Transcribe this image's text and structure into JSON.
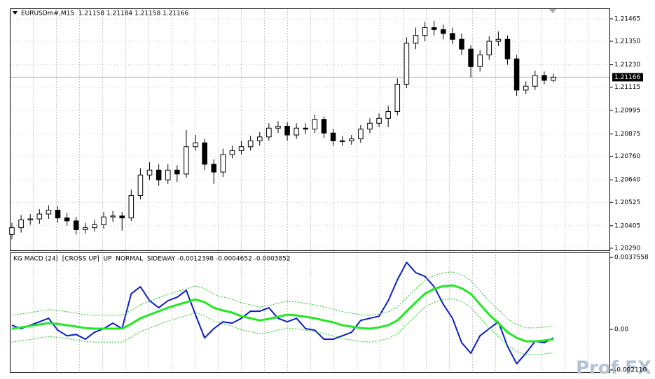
{
  "chart_data": [
    {
      "type": "candlestick",
      "title": "EURUSDm#,M15  1.21158 1.21184 1.21158 1.21166",
      "open": [
        1.2036,
        1.20395,
        1.20435,
        1.2044,
        1.20465,
        1.20485,
        1.20445,
        1.2043,
        1.20385,
        1.20395,
        1.2041,
        1.2045,
        1.20455,
        1.20445,
        1.2056,
        1.20665,
        1.2069,
        1.2064,
        1.2069,
        1.2067,
        1.2081,
        1.2083,
        1.2072,
        1.2068,
        1.2077,
        1.2079,
        1.2081,
        1.2084,
        1.2086,
        1.20905,
        1.20915,
        1.2087,
        1.20905,
        1.209,
        1.2095,
        1.2088,
        1.2084,
        1.2084,
        1.2085,
        1.209,
        1.2093,
        1.20955,
        1.2099,
        1.2113,
        1.2134,
        1.2138,
        1.2142,
        1.2141,
        1.2139,
        1.2136,
        1.2131,
        1.2122,
        1.2128,
        1.2135,
        1.2136,
        1.2126,
        1.211,
        1.2112,
        1.21175,
        1.2115
      ],
      "high": [
        1.2042,
        1.2046,
        1.20465,
        1.2049,
        1.2051,
        1.20505,
        1.2047,
        1.2045,
        1.2042,
        1.20435,
        1.20475,
        1.2048,
        1.20475,
        1.2059,
        1.207,
        1.2073,
        1.2072,
        1.2072,
        1.20715,
        1.20895,
        1.2087,
        1.2085,
        1.20745,
        1.208,
        1.20815,
        1.2084,
        1.20865,
        1.20885,
        1.2093,
        1.2094,
        1.20935,
        1.2093,
        1.2093,
        1.20975,
        1.20965,
        1.209,
        1.20865,
        1.2087,
        1.2092,
        1.20955,
        1.2098,
        1.2102,
        1.2116,
        1.2137,
        1.2142,
        1.2145,
        1.21455,
        1.21435,
        1.2142,
        1.2139,
        1.2133,
        1.21305,
        1.21375,
        1.214,
        1.2138,
        1.2128,
        1.21145,
        1.212,
        1.21195,
        1.21184
      ],
      "low": [
        1.20335,
        1.2037,
        1.2041,
        1.20415,
        1.2044,
        1.2042,
        1.20405,
        1.2036,
        1.20365,
        1.20375,
        1.2039,
        1.20425,
        1.2038,
        1.2043,
        1.2054,
        1.2064,
        1.2061,
        1.2062,
        1.2063,
        1.2065,
        1.2079,
        1.2069,
        1.2062,
        1.20655,
        1.2075,
        1.2077,
        1.2079,
        1.20815,
        1.2084,
        1.2088,
        1.2084,
        1.2085,
        1.20875,
        1.2088,
        1.20855,
        1.20815,
        1.20815,
        1.2082,
        1.2083,
        1.2088,
        1.2091,
        1.2091,
        1.2097,
        1.2111,
        1.2131,
        1.2135,
        1.2138,
        1.2136,
        1.21335,
        1.2128,
        1.21165,
        1.21195,
        1.21255,
        1.21325,
        1.2123,
        1.2107,
        1.2108,
        1.211,
        1.2113,
        1.2114
      ],
      "close": [
        1.20395,
        1.20435,
        1.2044,
        1.20465,
        1.20485,
        1.20445,
        1.2043,
        1.20385,
        1.20395,
        1.2041,
        1.2045,
        1.20455,
        1.20445,
        1.2056,
        1.20665,
        1.2069,
        1.2064,
        1.2069,
        1.2067,
        1.2081,
        1.2083,
        1.2072,
        1.2068,
        1.2077,
        1.2079,
        1.2081,
        1.2084,
        1.2086,
        1.20905,
        1.20915,
        1.2087,
        1.20905,
        1.209,
        1.2095,
        1.2088,
        1.2084,
        1.2084,
        1.2085,
        1.209,
        1.2093,
        1.20955,
        1.2099,
        1.2113,
        1.2134,
        1.2138,
        1.2142,
        1.2141,
        1.2139,
        1.2136,
        1.2131,
        1.2122,
        1.2128,
        1.2135,
        1.2136,
        1.2126,
        1.211,
        1.2112,
        1.21175,
        1.2115,
        1.21166
      ],
      "bull_color": "#ffffff",
      "bear_color": "#000000",
      "ylim": [
        1.20279,
        1.21515
      ],
      "yticks": [
        1.21465,
        {
          "value": 1.2135,
          "label": "1.21350"
        },
        {
          "value": 1.2123,
          "label": "1.21230"
        },
        1.21115,
        1.20995,
        1.20875,
        {
          "value": 1.2076,
          "label": "1.20760"
        },
        {
          "value": 1.2064,
          "label": "1.20640"
        },
        1.20525,
        1.20405,
        {
          "value": 1.2029,
          "label": "1.20290"
        }
      ],
      "grid": true,
      "current_price": 1.21166
    },
    {
      "type": "line",
      "title": "KG MACD (24)  [CROSS UP]  UP  NORMAL  SIDEWAY -0.0012398 -0.0004652 -0.0003852",
      "series": [
        {
          "color": "#0a1ec8",
          "style": "solid",
          "values": [
            0.00022,
            4e-05,
            0.00022,
            0.0004,
            0.00058,
            -4e-05,
            -0.00033,
            -0.00026,
            -0.00051,
            -0.00015,
            4e-05,
            0.00033,
            4e-05,
            0.00186,
            0.00223,
            0.0015,
            0.00113,
            0.0015,
            0.00168,
            0.00204,
            0.00077,
            -0.00044,
            4e-05,
            0.0004,
            0.00033,
            0.00058,
            0.00095,
            0.00095,
            0.00113,
            0.00058,
            0.0004,
            0.00058,
            4e-05,
            -4e-05,
            -0.00051,
            -0.00051,
            -0.00033,
            -0.00015,
            0.00047,
            0.00058,
            0.00069,
            0.0015,
            0.00259,
            0.0035,
            0.00296,
            0.00277,
            0.00223,
            0.00131,
            0.00058,
            -0.00069,
            -0.00124,
            -0.00033,
            4e-05,
            0.0004,
            -0.00088,
            -0.00179,
            -0.00124,
            -0.00062,
            -0.00069,
            -0.00044
          ]
        },
        {
          "color": "#22e822",
          "style": "thick",
          "values": [
            4e-05,
            0.00011,
            0.00018,
            0.00026,
            0.00033,
            0.00029,
            0.00022,
            0.00015,
            7e-05,
            4e-05,
            4e-05,
            4e-05,
            4e-05,
            0.00029,
            0.00058,
            0.00077,
            0.00095,
            0.00113,
            0.00128,
            0.00142,
            0.00157,
            0.00142,
            0.00113,
            0.00099,
            0.00088,
            0.00069,
            0.00058,
            0.00047,
            0.00055,
            0.00066,
            0.00077,
            0.00073,
            0.00066,
            0.00058,
            0.00047,
            0.00037,
            0.00022,
            0.00015,
            7e-05,
            4e-05,
            0.00011,
            0.00022,
            0.00047,
            0.00095,
            0.00142,
            0.00186,
            0.00212,
            0.00226,
            0.0023,
            0.00215,
            0.00186,
            0.00131,
            0.00077,
            0.00033,
            -0.00015,
            -0.00044,
            -0.00062,
            -0.00062,
            -0.00058,
            -0.00051
          ]
        },
        {
          "color": "#22c022",
          "style": "dotted",
          "values": [
            0.00074,
            0.00081,
            0.00088,
            0.00096,
            0.00103,
            0.00099,
            0.00092,
            0.00085,
            0.00077,
            0.00074,
            0.00074,
            0.00074,
            0.00074,
            0.00099,
            0.00128,
            0.00147,
            0.00165,
            0.00183,
            0.00198,
            0.00212,
            0.00227,
            0.00212,
            0.00183,
            0.00169,
            0.00158,
            0.00139,
            0.00128,
            0.00117,
            0.00125,
            0.00136,
            0.00147,
            0.00143,
            0.00136,
            0.00128,
            0.00117,
            0.00107,
            0.00092,
            0.00085,
            0.00077,
            0.00074,
            0.00081,
            0.00092,
            0.00117,
            0.00165,
            0.00212,
            0.00256,
            0.00282,
            0.00296,
            0.003,
            0.00285,
            0.00256,
            0.00201,
            0.00147,
            0.00103,
            0.00055,
            0.00026,
            8e-05,
            8e-05,
            0.00012,
            0.00019
          ]
        },
        {
          "color": "#22c022",
          "style": "dotted",
          "values": [
            -0.00066,
            -0.00059,
            -0.00052,
            -0.00044,
            -0.00037,
            -0.00041,
            -0.00048,
            -0.00055,
            -0.00063,
            -0.00066,
            -0.00066,
            -0.00066,
            -0.00066,
            -0.00041,
            -0.00012,
            7e-05,
            0.00025,
            0.00043,
            0.00058,
            0.00072,
            0.00087,
            0.00072,
            0.00043,
            0.00029,
            0.00018,
            -1e-05,
            -0.00012,
            -0.00023,
            -0.00015,
            -4e-05,
            7e-05,
            3e-05,
            -4e-05,
            -0.00012,
            -0.00023,
            -0.00033,
            -0.00048,
            -0.00055,
            -0.00063,
            -0.00066,
            -0.00059,
            -0.00048,
            -0.00023,
            0.00025,
            0.00072,
            0.00116,
            0.00142,
            0.00156,
            0.0016,
            0.00145,
            0.00116,
            0.00061,
            7e-05,
            -0.00037,
            -0.00085,
            -0.00114,
            -0.00132,
            -0.00132,
            -0.00128,
            -0.00121
          ]
        }
      ],
      "ylim": [
        -0.00222,
        0.00398
      ],
      "yticks": [
        0.0037558,
        {
          "value": 0,
          "label": "0.00"
        },
        {
          "value": -0.00211,
          "label": "-0.002110"
        }
      ],
      "grid": false
    }
  ],
  "watermark": "Prof FX"
}
